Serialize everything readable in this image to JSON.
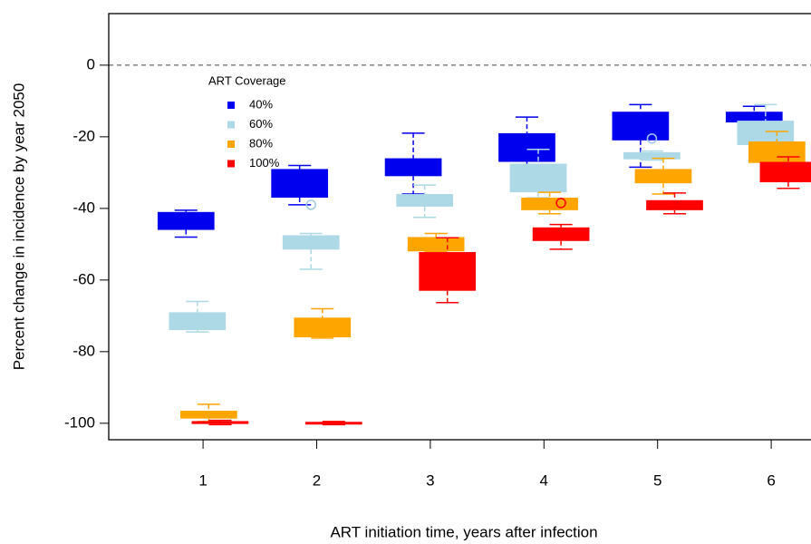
{
  "chart_data": {
    "type": "box",
    "y_label": "Percent change in incidence by year 2050",
    "x_label": "ART initiation time, years after infection",
    "legend_title": "ART Coverage",
    "categories": [
      "1",
      "2",
      "3",
      "4",
      "5",
      "6"
    ],
    "xlim": [
      0.17,
      6.39
    ],
    "ylim": [
      -104.6,
      14.4
    ],
    "yticks": [
      0,
      -20,
      -40,
      -60,
      -80,
      -100
    ],
    "reference_line": 0,
    "series": [
      {
        "name": "40%",
        "color": "#0000ee",
        "high": [
          -40.5,
          -28,
          -19,
          -14.5,
          -11,
          -11.5
        ],
        "q3": [
          -41,
          -29,
          -26,
          -19,
          -13,
          -13
        ],
        "q1": [
          -46,
          -37,
          -31,
          -27,
          -21,
          -16
        ],
        "low": [
          -48,
          -39,
          -36,
          -28,
          -28.5,
          -16.5
        ],
        "outliers": [
          null,
          null,
          null,
          null,
          null,
          null
        ]
      },
      {
        "name": "60%",
        "color": "#add8e6",
        "high": [
          -66,
          -47,
          -33.5,
          -23.5,
          -24,
          -11
        ],
        "q3": [
          -69,
          -47.5,
          -36,
          -27.5,
          -24.3,
          -15.5
        ],
        "q1": [
          -74,
          -51.5,
          -39.5,
          -35.5,
          -26.3,
          -22.3
        ],
        "low": [
          -74.5,
          -57,
          -42.5,
          -37,
          -26.5,
          -22.5
        ],
        "outliers": [
          null,
          -39,
          null,
          null,
          -20.5,
          null
        ]
      },
      {
        "name": "80%",
        "color": "#ffa500",
        "high": [
          -94.7,
          -68,
          -47,
          -35.5,
          -26,
          -18.5
        ],
        "q3": [
          -96.5,
          -70.5,
          -48,
          -37,
          -29,
          -21.3
        ],
        "q1": [
          -98.7,
          -76,
          -52,
          -40.5,
          -33,
          -27.3
        ],
        "low": [
          -99.5,
          -76.2,
          -52,
          -41.5,
          -36,
          -27.5
        ],
        "outliers": [
          null,
          null,
          null,
          null,
          null,
          null
        ]
      },
      {
        "name": "100%",
        "color": "#ff0000",
        "high": [
          -99.2,
          -99.5,
          -48.2,
          -44.5,
          -35.7,
          -25.6
        ],
        "q3": [
          -99.4,
          -99.6,
          -52.2,
          -45.3,
          -37.7,
          -27
        ],
        "q1": [
          -100.2,
          -100.3,
          -63,
          -49.1,
          -40.5,
          -32.7
        ],
        "low": [
          -100.4,
          -100.4,
          -66.3,
          -51.4,
          -41.5,
          -34.4
        ],
        "outliers": [
          null,
          null,
          null,
          -38.5,
          null,
          null
        ]
      }
    ]
  }
}
